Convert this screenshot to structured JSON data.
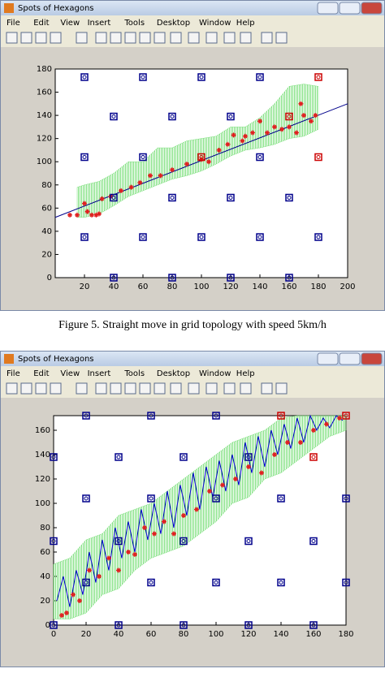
{
  "windows": [
    {
      "title": "Spots of Hexagons",
      "menu": [
        "File",
        "Edit",
        "View",
        "Insert",
        "Tools",
        "Desktop",
        "Window",
        "Help"
      ]
    },
    {
      "title": "Spots of Hexagons",
      "menu": [
        "File",
        "Edit",
        "View",
        "Insert",
        "Tools",
        "Desktop",
        "Window",
        "Help"
      ]
    }
  ],
  "caption": "Figure 5.    Straight move in grid topology with speed 5km/h",
  "chart_data": [
    {
      "type": "scatter",
      "xlim": [
        0,
        200
      ],
      "ylim": [
        0,
        180
      ],
      "xticks": [
        20,
        40,
        60,
        80,
        100,
        120,
        140,
        160,
        180,
        200
      ],
      "yticks": [
        0,
        20,
        40,
        60,
        80,
        100,
        120,
        140,
        160,
        180
      ],
      "series": [
        {
          "mode": "band",
          "color": "#7ee07e",
          "x": [
            15,
            20,
            30,
            40,
            50,
            60,
            70,
            80,
            90,
            100,
            110,
            120,
            130,
            140,
            150,
            160,
            170,
            180
          ],
          "upper": [
            78,
            80,
            83,
            90,
            100,
            100,
            112,
            112,
            118,
            120,
            122,
            130,
            130,
            138,
            150,
            165,
            167,
            165
          ],
          "lower": [
            52,
            52,
            55,
            62,
            70,
            75,
            80,
            85,
            88,
            92,
            98,
            105,
            110,
            112,
            115,
            120,
            122,
            128
          ]
        },
        {
          "mode": "line",
          "color": "#00008b",
          "x": [
            0,
            200
          ],
          "values": [
            52,
            150
          ]
        },
        {
          "mode": "points",
          "color": "#e02020",
          "x": [
            10,
            15,
            20,
            22,
            25,
            28,
            30,
            32,
            38,
            45,
            52,
            58,
            65,
            72,
            80,
            90,
            100,
            105,
            112,
            118,
            122,
            128,
            130,
            135,
            140,
            145,
            150,
            155,
            160,
            165,
            168,
            170,
            175,
            178
          ],
          "values": [
            54,
            54,
            64,
            57,
            54,
            54,
            55,
            68,
            70,
            75,
            78,
            82,
            88,
            88,
            93,
            98,
            102,
            100,
            110,
            115,
            123,
            118,
            122,
            125,
            135,
            125,
            130,
            128,
            130,
            125,
            150,
            140,
            135,
            140
          ]
        },
        {
          "mode": "nodes",
          "color": "#00008b",
          "x": [
            20,
            60,
            100,
            140,
            40,
            80,
            120,
            20,
            60,
            140,
            40,
            80,
            120,
            160,
            20,
            60,
            100,
            140,
            180,
            40,
            80,
            120,
            160
          ],
          "values": [
            173,
            173,
            173,
            173,
            139,
            139,
            139,
            104,
            104,
            104,
            69,
            69,
            69,
            69,
            35,
            35,
            35,
            35,
            35,
            0,
            0,
            0,
            0
          ]
        },
        {
          "mode": "nodes",
          "color": "#cc0000",
          "x": [
            180,
            160,
            100,
            180
          ],
          "values": [
            173,
            139,
            104,
            104
          ]
        }
      ]
    },
    {
      "type": "scatter",
      "xlim": [
        0,
        180
      ],
      "ylim": [
        0,
        172
      ],
      "xticks": [
        0,
        20,
        40,
        60,
        80,
        100,
        120,
        140,
        160,
        180
      ],
      "yticks": [
        0,
        20,
        40,
        60,
        80,
        100,
        120,
        140,
        160
      ],
      "series": [
        {
          "mode": "band",
          "color": "#7ee07e",
          "x": [
            0,
            10,
            20,
            30,
            40,
            50,
            60,
            70,
            80,
            90,
            100,
            110,
            120,
            130,
            140,
            150,
            160,
            170,
            180
          ],
          "upper": [
            50,
            55,
            70,
            75,
            90,
            95,
            100,
            110,
            120,
            130,
            140,
            150,
            155,
            160,
            170,
            172,
            172,
            172,
            172
          ],
          "lower": [
            5,
            5,
            10,
            25,
            30,
            45,
            55,
            60,
            65,
            75,
            85,
            100,
            105,
            120,
            125,
            135,
            145,
            155,
            160
          ]
        },
        {
          "mode": "line",
          "color": "#0000cc",
          "x": [
            2,
            6,
            10,
            14,
            18,
            22,
            26,
            30,
            34,
            38,
            42,
            46,
            50,
            54,
            58,
            62,
            66,
            70,
            74,
            78,
            82,
            86,
            90,
            94,
            98,
            102,
            106,
            110,
            114,
            118,
            122,
            126,
            130,
            134,
            138,
            142,
            146,
            150,
            154,
            158,
            162,
            166,
            170,
            174,
            178
          ],
          "values": [
            20,
            40,
            15,
            45,
            25,
            60,
            35,
            70,
            45,
            80,
            55,
            85,
            60,
            95,
            70,
            100,
            75,
            110,
            80,
            115,
            90,
            125,
            95,
            130,
            105,
            135,
            110,
            140,
            115,
            150,
            125,
            155,
            130,
            160,
            140,
            165,
            145,
            170,
            150,
            172,
            160,
            170,
            162,
            172,
            168
          ]
        },
        {
          "mode": "points",
          "color": "#e02020",
          "x": [
            5,
            8,
            12,
            16,
            22,
            28,
            34,
            40,
            46,
            50,
            56,
            62,
            68,
            74,
            80,
            88,
            96,
            104,
            112,
            120,
            128,
            136,
            144,
            152,
            160,
            168,
            176
          ],
          "values": [
            8,
            10,
            25,
            20,
            45,
            40,
            55,
            45,
            60,
            58,
            80,
            75,
            85,
            75,
            90,
            95,
            110,
            115,
            120,
            130,
            125,
            140,
            150,
            150,
            160,
            165,
            170
          ]
        },
        {
          "mode": "nodes",
          "color": "#00008b",
          "x": [
            20,
            60,
            100,
            0,
            40,
            80,
            120,
            20,
            60,
            100,
            140,
            180,
            0,
            40,
            80,
            120,
            160,
            20,
            60,
            100,
            140,
            180,
            0,
            40,
            80,
            120,
            160
          ],
          "values": [
            172,
            172,
            172,
            138,
            138,
            138,
            138,
            104,
            104,
            104,
            104,
            104,
            69,
            69,
            69,
            69,
            69,
            35,
            35,
            35,
            35,
            35,
            0,
            0,
            0,
            0,
            0
          ]
        },
        {
          "mode": "nodes",
          "color": "#cc0000",
          "x": [
            140,
            180,
            160
          ],
          "values": [
            172,
            172,
            138
          ]
        }
      ]
    }
  ]
}
